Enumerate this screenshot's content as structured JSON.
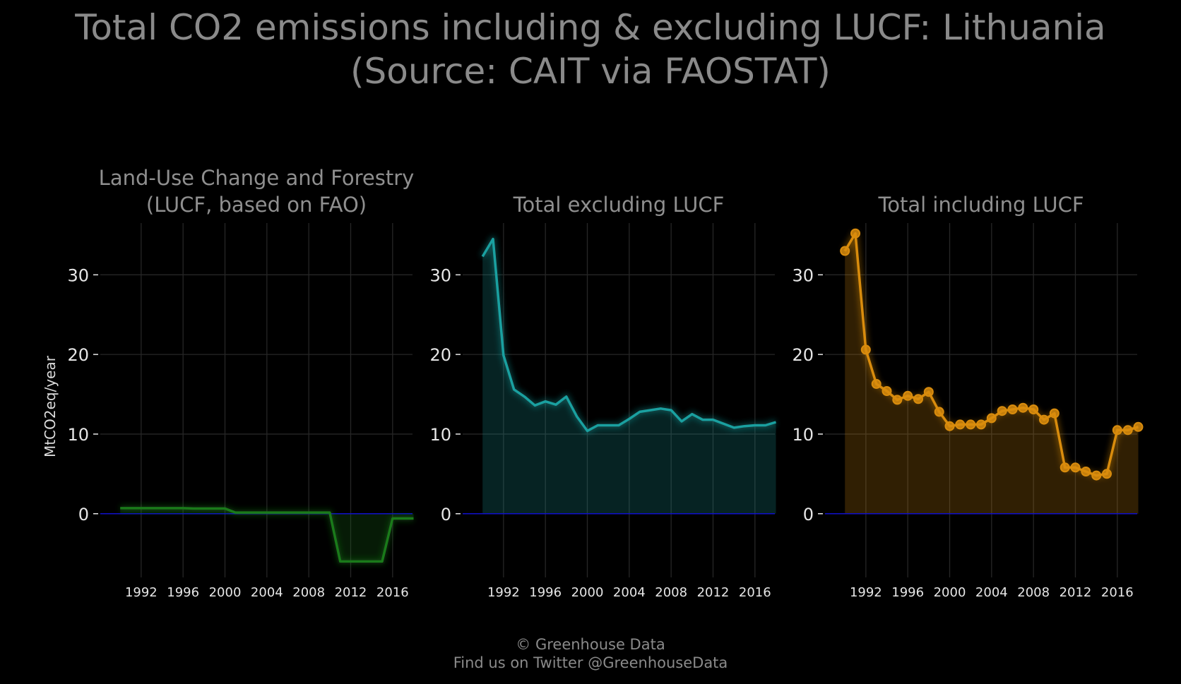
{
  "title": {
    "line1": "Total CO2 emissions including & excluding LUCF: Lithuania",
    "line2": "(Source: CAIT via FAOSTAT)"
  },
  "footer": {
    "line1": "© Greenhouse Data",
    "line2": "Find us on Twitter @GreenhouseData"
  },
  "y_axis_label": "MtCO2eq/year",
  "colors": {
    "background": "#000000",
    "grid": "#262626",
    "zero_line": "#1010cc",
    "lucf": "#1a7a1a",
    "excluding": "#1aa0a0",
    "including": "#d98c0d"
  },
  "chart_data": [
    {
      "type": "area",
      "title_lines": [
        "Land-Use Change and Forestry",
        "(LUCF, based on FAO)"
      ],
      "color_key": "lucf",
      "markers": false,
      "x": [
        1990,
        1991,
        1992,
        1993,
        1994,
        1995,
        1996,
        1997,
        1998,
        1999,
        2000,
        2001,
        2002,
        2003,
        2004,
        2005,
        2006,
        2007,
        2008,
        2009,
        2010,
        2011,
        2012,
        2013,
        2014,
        2015,
        2016,
        2017,
        2018
      ],
      "values": [
        0.7,
        0.7,
        0.7,
        0.7,
        0.7,
        0.7,
        0.7,
        0.65,
        0.65,
        0.65,
        0.65,
        0.15,
        0.15,
        0.15,
        0.15,
        0.15,
        0.15,
        0.15,
        0.15,
        0.15,
        0.15,
        -6.0,
        -6.0,
        -6.0,
        -6.0,
        -6.0,
        -0.6,
        -0.6,
        -0.6
      ],
      "xticks": [
        1992,
        1996,
        2000,
        2004,
        2008,
        2012,
        2016
      ],
      "yticks": [
        0,
        10,
        20,
        30
      ],
      "xlim": [
        1988.1,
        2017.9
      ],
      "ylim": [
        -8,
        36.5
      ],
      "grid": true
    },
    {
      "type": "area",
      "title_lines": [
        "Total excluding LUCF"
      ],
      "color_key": "excluding",
      "markers": false,
      "x": [
        1990,
        1991,
        1992,
        1993,
        1994,
        1995,
        1996,
        1997,
        1998,
        1999,
        2000,
        2001,
        2002,
        2003,
        2004,
        2005,
        2006,
        2007,
        2008,
        2009,
        2010,
        2011,
        2012,
        2013,
        2014,
        2015,
        2016,
        2017,
        2018
      ],
      "values": [
        32.3,
        34.5,
        19.9,
        15.6,
        14.7,
        13.6,
        14.1,
        13.7,
        14.7,
        12.2,
        10.4,
        11.1,
        11.1,
        11.1,
        11.9,
        12.8,
        13.0,
        13.2,
        13.0,
        11.6,
        12.5,
        11.8,
        11.8,
        11.3,
        10.8,
        11.0,
        11.1,
        11.1,
        11.5
      ],
      "xticks": [
        1992,
        1996,
        2000,
        2004,
        2008,
        2012,
        2016
      ],
      "yticks": [
        0,
        10,
        20,
        30
      ],
      "xlim": [
        1988.1,
        2017.9
      ],
      "ylim": [
        -8,
        36.5
      ],
      "grid": true
    },
    {
      "type": "area",
      "title_lines": [
        "Total including LUCF"
      ],
      "color_key": "including",
      "markers": true,
      "x": [
        1990,
        1991,
        1992,
        1993,
        1994,
        1995,
        1996,
        1997,
        1998,
        1999,
        2000,
        2001,
        2002,
        2003,
        2004,
        2005,
        2006,
        2007,
        2008,
        2009,
        2010,
        2011,
        2012,
        2013,
        2014,
        2015,
        2016,
        2017,
        2018
      ],
      "values": [
        33.0,
        35.2,
        20.6,
        16.3,
        15.4,
        14.3,
        14.8,
        14.4,
        15.3,
        12.8,
        11.0,
        11.2,
        11.2,
        11.2,
        12.0,
        12.9,
        13.1,
        13.3,
        13.1,
        11.8,
        12.6,
        5.8,
        5.8,
        5.3,
        4.8,
        5.0,
        10.5,
        10.5,
        10.9
      ],
      "xticks": [
        1992,
        1996,
        2000,
        2004,
        2008,
        2012,
        2016
      ],
      "yticks": [
        0,
        10,
        20,
        30
      ],
      "xlim": [
        1988.1,
        2017.9
      ],
      "ylim": [
        -8,
        36.5
      ],
      "grid": true
    }
  ]
}
